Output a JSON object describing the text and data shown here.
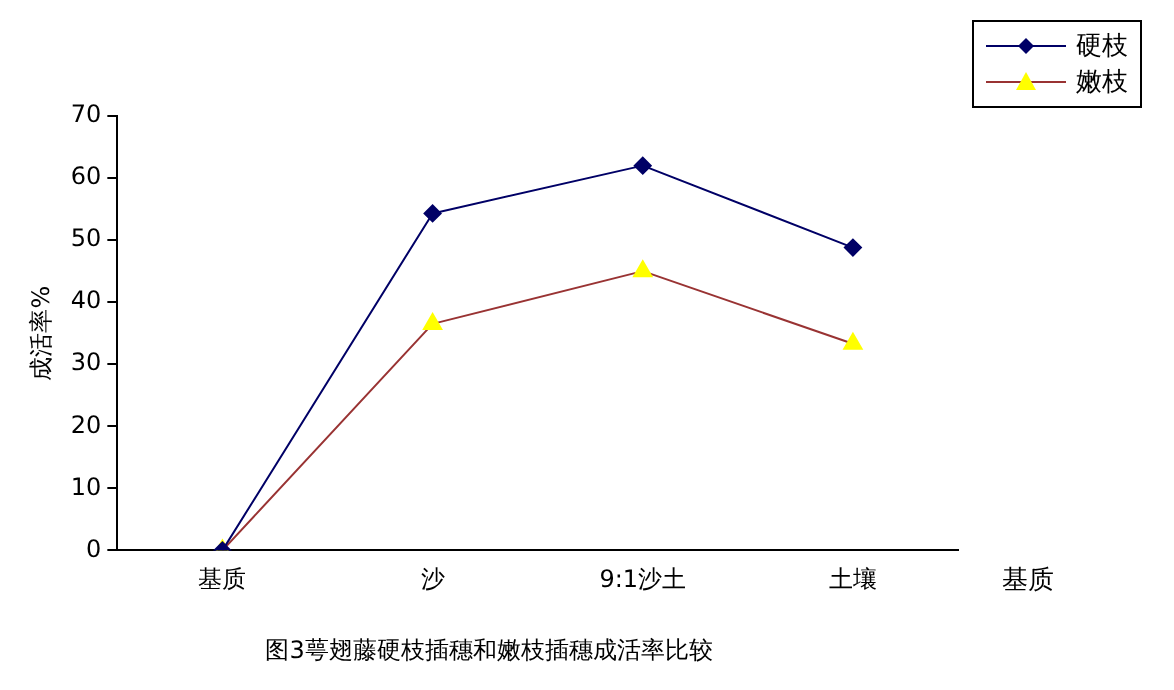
{
  "chart_data": {
    "type": "line",
    "title": "图3萼翅藤硬枝插穗和嫩枝插穗成活率比较",
    "xlabel": "基质",
    "ylabel": "成活率%",
    "categories": [
      "基质",
      "沙",
      "9:1沙土",
      "土壤"
    ],
    "series": [
      {
        "name": "硬枝",
        "color": "#000066",
        "marker": "diamond",
        "values": [
          0,
          54.3,
          62,
          48.8
        ]
      },
      {
        "name": "嫩枝",
        "color": "#993333",
        "marker": "triangle",
        "values": [
          0,
          36.5,
          45,
          33.3
        ]
      }
    ],
    "ylim": [
      0,
      70
    ],
    "yticks": [
      0,
      10,
      20,
      30,
      40,
      50,
      60,
      70
    ],
    "grid": false,
    "legend": "top right",
    "line_style": "solid"
  }
}
